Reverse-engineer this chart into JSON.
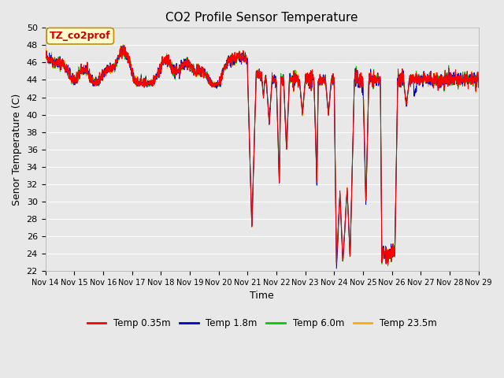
{
  "title": "CO2 Profile Sensor Temperature",
  "ylabel": "Senor Temperature (C)",
  "xlabel": "Time",
  "ylim": [
    22,
    50
  ],
  "yticks": [
    22,
    24,
    26,
    28,
    30,
    32,
    34,
    36,
    38,
    40,
    42,
    44,
    46,
    48,
    50
  ],
  "xtick_labels": [
    "Nov 14",
    "Nov 15",
    "Nov 16",
    "Nov 17",
    "Nov 18",
    "Nov 19",
    "Nov 20",
    "Nov 21",
    "Nov 22",
    "Nov 23",
    "Nov 24",
    "Nov 25",
    "Nov 26",
    "Nov 27",
    "Nov 28",
    "Nov 29"
  ],
  "legend_labels": [
    "Temp 0.35m",
    "Temp 1.8m",
    "Temp 6.0m",
    "Temp 23.5m"
  ],
  "legend_colors": [
    "#ff0000",
    "#0000cc",
    "#00cc00",
    "#ffaa00"
  ],
  "annotation_text": "TZ_co2prof",
  "annotation_box_color": "#ffffcc",
  "annotation_border_color": "#cc8800",
  "background_color": "#e8e8e8",
  "grid_color": "#ffffff",
  "title_fontsize": 11,
  "axis_fontsize": 9,
  "tick_fontsize": 8
}
